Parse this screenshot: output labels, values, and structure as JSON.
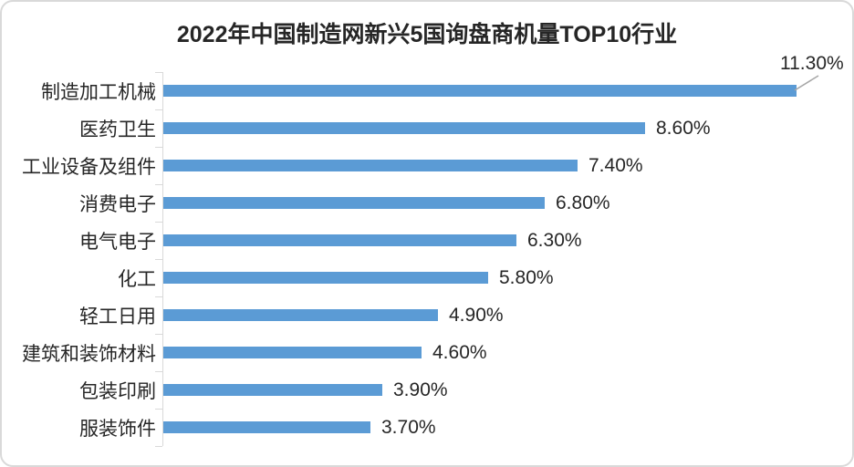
{
  "chart_data": {
    "type": "bar",
    "orientation": "horizontal",
    "title": "2022年中国制造网新兴5国询盘商机量TOP10行业",
    "categories": [
      "制造加工机械",
      "医药卫生",
      "工业设备及组件",
      "消费电子",
      "电气电子",
      "化工",
      "轻工日用",
      "建筑和装饰材料",
      "包装印刷",
      "服装饰件"
    ],
    "values": [
      11.3,
      8.6,
      7.4,
      6.8,
      6.3,
      5.8,
      4.9,
      4.6,
      3.9,
      3.7
    ],
    "value_labels": [
      "11.30%",
      "8.60%",
      "7.40%",
      "6.80%",
      "6.30%",
      "5.80%",
      "4.90%",
      "4.60%",
      "3.90%",
      "3.70%"
    ],
    "xlim": [
      0,
      11.3
    ],
    "xlabel": "",
    "ylabel": "",
    "grid": "off",
    "legend": "none",
    "first_label_has_leader_line": true,
    "bar_color": "#5B9BD5",
    "axis_color": "#D9D9D9",
    "leader_line_color": "#A6A6A6",
    "text_color": "#262626"
  }
}
